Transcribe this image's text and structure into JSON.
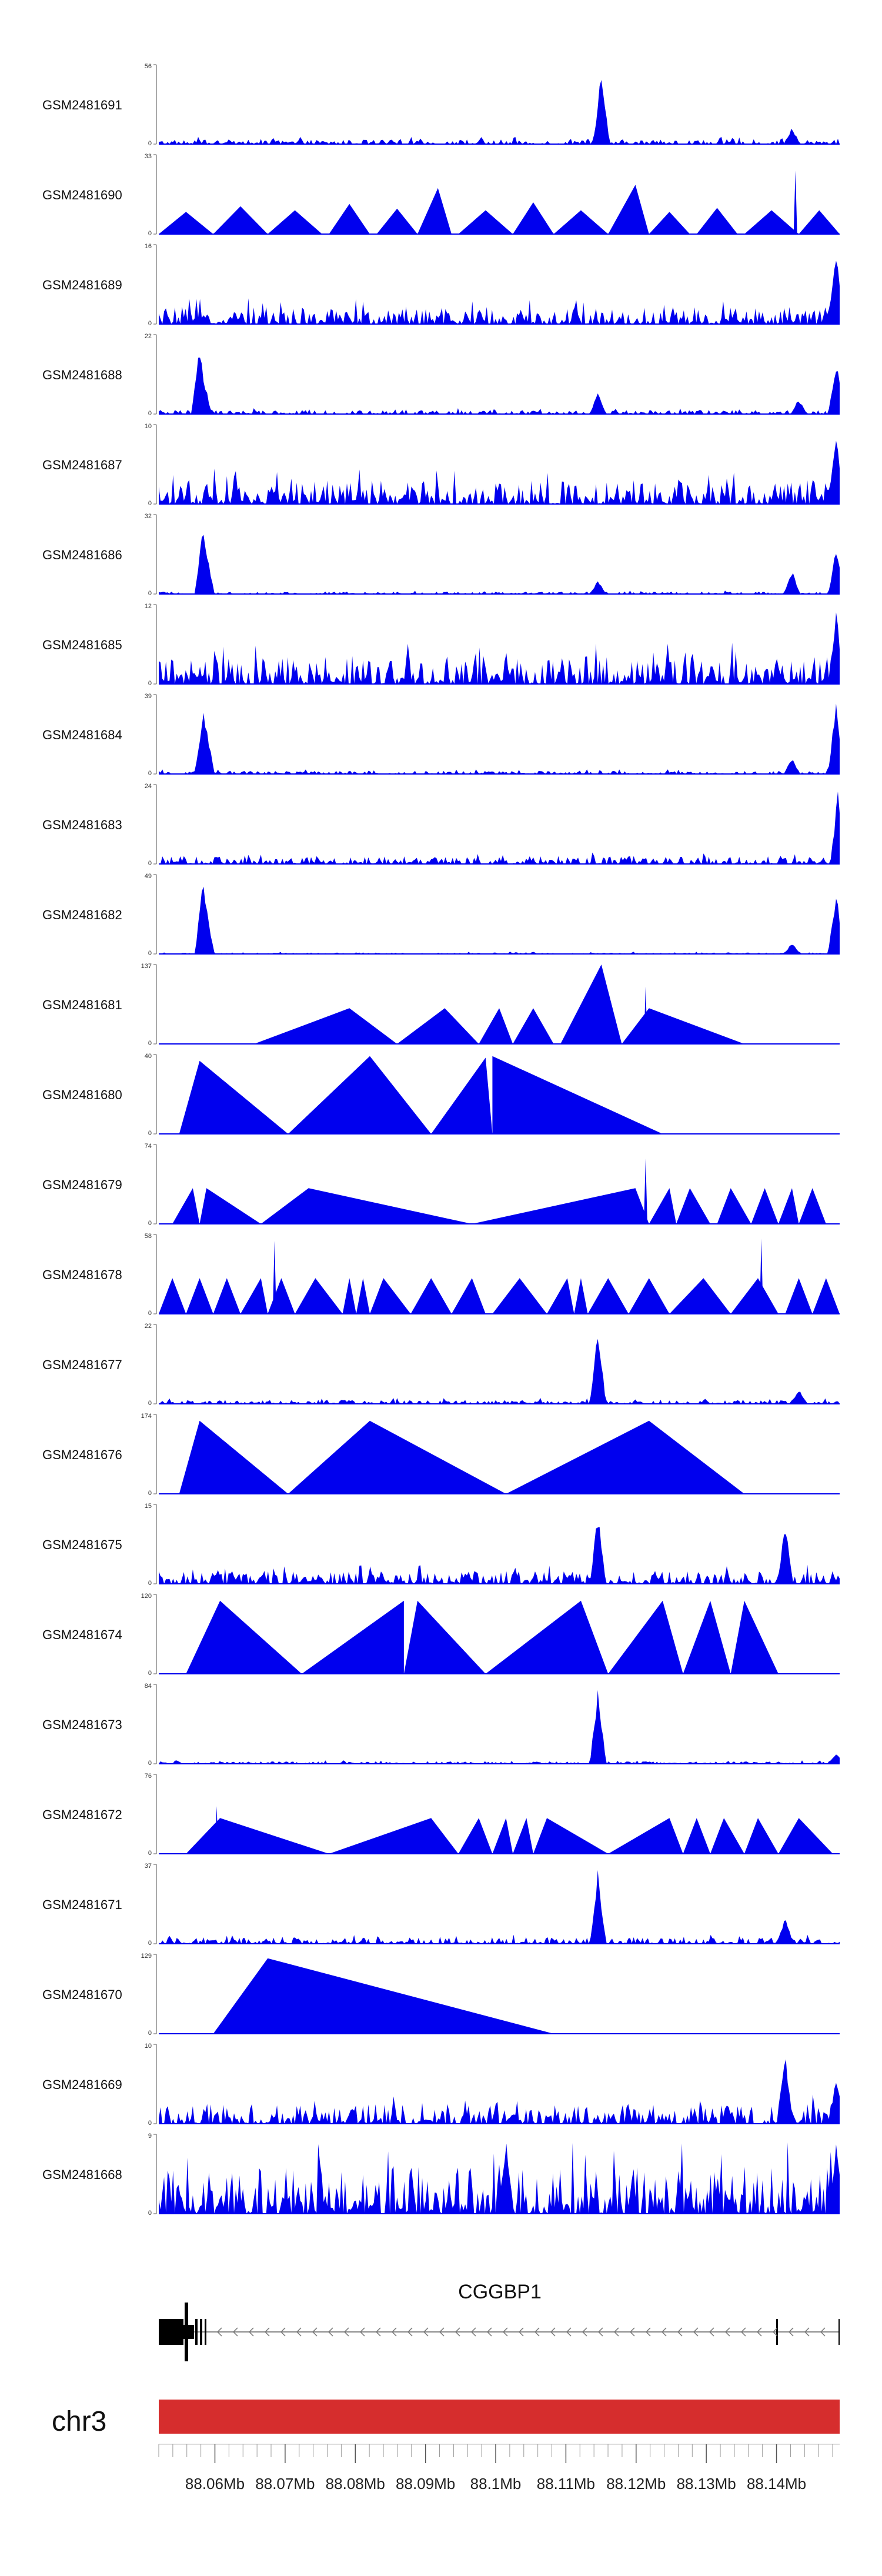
{
  "chart_data": {
    "type": "area",
    "title": "",
    "chromosome": "chr3",
    "gene": {
      "name": "CGGBP1",
      "strand": "-"
    },
    "xlim_mb": [
      88.052,
      88.149
    ],
    "xticks": [
      "88.06Mb",
      "88.07Mb",
      "88.08Mb",
      "88.09Mb",
      "88.1Mb",
      "88.11Mb",
      "88.12Mb",
      "88.13Mb",
      "88.14Mb"
    ],
    "xtick_values_mb": [
      88.06,
      88.07,
      88.08,
      88.09,
      88.1,
      88.11,
      88.12,
      88.13,
      88.14
    ],
    "color": "#0000ee",
    "ideogram_color": "#d62d2d",
    "tracks": [
      {
        "name": "GSM2481691",
        "ymax": 56,
        "style": "noise",
        "base": 0.06,
        "peaks": [
          [
            0.65,
            1.0
          ],
          [
            0.93,
            0.22
          ]
        ]
      },
      {
        "name": "GSM2481690",
        "ymax": 33,
        "style": "tri",
        "base": 0,
        "tri": [
          [
            0.0,
            0.04,
            0.08,
            0.28
          ],
          [
            0.08,
            0.12,
            0.16,
            0.35
          ],
          [
            0.16,
            0.2,
            0.24,
            0.3
          ],
          [
            0.25,
            0.28,
            0.31,
            0.38
          ],
          [
            0.32,
            0.35,
            0.38,
            0.32
          ],
          [
            0.38,
            0.41,
            0.43,
            0.58
          ],
          [
            0.44,
            0.48,
            0.52,
            0.3
          ],
          [
            0.52,
            0.55,
            0.58,
            0.4
          ],
          [
            0.58,
            0.62,
            0.66,
            0.3
          ],
          [
            0.66,
            0.7,
            0.72,
            0.62
          ],
          [
            0.72,
            0.75,
            0.78,
            0.28
          ],
          [
            0.79,
            0.82,
            0.85,
            0.33
          ],
          [
            0.86,
            0.9,
            0.94,
            0.3
          ],
          [
            0.94,
            0.97,
            1.0,
            0.3
          ]
        ],
        "peaks": [
          [
            0.935,
            0.8
          ]
        ]
      },
      {
        "name": "GSM2481689",
        "ymax": 16,
        "style": "noise",
        "base": 0.22,
        "peaks": [
          [
            0.995,
            1.0
          ]
        ]
      },
      {
        "name": "GSM2481688",
        "ymax": 22,
        "style": "noise",
        "base": 0.05,
        "peaks": [
          [
            0.06,
            0.9
          ],
          [
            0.065,
            0.55
          ],
          [
            0.645,
            0.3
          ],
          [
            0.94,
            0.2
          ],
          [
            0.995,
            0.7
          ]
        ]
      },
      {
        "name": "GSM2481687",
        "ymax": 10,
        "style": "noise",
        "base": 0.3,
        "peaks": [
          [
            0.995,
            1.0
          ]
        ]
      },
      {
        "name": "GSM2481686",
        "ymax": 32,
        "style": "noise",
        "base": 0.03,
        "peaks": [
          [
            0.065,
            0.95
          ],
          [
            0.07,
            0.55
          ],
          [
            0.645,
            0.18
          ],
          [
            0.93,
            0.3
          ],
          [
            0.995,
            0.6
          ]
        ]
      },
      {
        "name": "GSM2481685",
        "ymax": 12,
        "style": "noise",
        "base": 0.35,
        "peaks": [
          [
            0.995,
            0.95
          ]
        ]
      },
      {
        "name": "GSM2481684",
        "ymax": 39,
        "style": "noise",
        "base": 0.04,
        "peaks": [
          [
            0.065,
            0.9
          ],
          [
            0.07,
            0.6
          ],
          [
            0.93,
            0.22
          ],
          [
            0.995,
            1.0
          ]
        ]
      },
      {
        "name": "GSM2481683",
        "ymax": 24,
        "style": "noise",
        "base": 0.1,
        "peaks": [
          [
            0.998,
            1.0
          ]
        ]
      },
      {
        "name": "GSM2481682",
        "ymax": 49,
        "style": "noise",
        "base": 0.02,
        "peaks": [
          [
            0.065,
            0.95
          ],
          [
            0.07,
            0.6
          ],
          [
            0.93,
            0.15
          ],
          [
            0.995,
            0.85
          ]
        ]
      },
      {
        "name": "GSM2481681",
        "ymax": 137,
        "style": "tri",
        "base": 0,
        "tri": [
          [
            0.14,
            0.28,
            0.35,
            0.45
          ],
          [
            0.35,
            0.42,
            0.47,
            0.45
          ],
          [
            0.47,
            0.5,
            0.52,
            0.45
          ],
          [
            0.52,
            0.55,
            0.58,
            0.45
          ],
          [
            0.59,
            0.65,
            0.68,
            1.0
          ],
          [
            0.68,
            0.72,
            0.86,
            0.45
          ]
        ],
        "peaks": [
          [
            0.715,
            0.72
          ]
        ]
      },
      {
        "name": "GSM2481680",
        "ymax": 40,
        "style": "tri",
        "base": 0,
        "tri": [
          [
            0.03,
            0.06,
            0.19,
            0.92
          ],
          [
            0.19,
            0.31,
            0.4,
            0.98
          ],
          [
            0.4,
            0.48,
            0.49,
            0.96
          ],
          [
            0.49,
            0.49,
            0.74,
            0.98
          ]
        ],
        "peaks": []
      },
      {
        "name": "GSM2481679",
        "ymax": 74,
        "style": "tri",
        "base": 0,
        "tri": [
          [
            0.02,
            0.05,
            0.06,
            0.45
          ],
          [
            0.06,
            0.07,
            0.15,
            0.45
          ],
          [
            0.15,
            0.22,
            0.46,
            0.45
          ],
          [
            0.46,
            0.7,
            0.72,
            0.45
          ],
          [
            0.72,
            0.75,
            0.76,
            0.45
          ],
          [
            0.76,
            0.78,
            0.81,
            0.45
          ],
          [
            0.82,
            0.84,
            0.87,
            0.45
          ],
          [
            0.87,
            0.89,
            0.91,
            0.45
          ],
          [
            0.91,
            0.93,
            0.94,
            0.45
          ],
          [
            0.94,
            0.96,
            0.98,
            0.45
          ]
        ],
        "peaks": [
          [
            0.715,
            0.82
          ]
        ]
      },
      {
        "name": "GSM2481678",
        "ymax": 58,
        "style": "tri",
        "base": 0,
        "tri": [
          [
            0.0,
            0.02,
            0.04,
            0.45
          ],
          [
            0.04,
            0.06,
            0.08,
            0.45
          ],
          [
            0.08,
            0.1,
            0.12,
            0.45
          ],
          [
            0.12,
            0.15,
            0.16,
            0.45
          ],
          [
            0.16,
            0.18,
            0.2,
            0.45
          ],
          [
            0.2,
            0.23,
            0.27,
            0.45
          ],
          [
            0.27,
            0.28,
            0.29,
            0.45
          ],
          [
            0.29,
            0.3,
            0.31,
            0.45
          ],
          [
            0.31,
            0.33,
            0.37,
            0.45
          ],
          [
            0.37,
            0.4,
            0.43,
            0.45
          ],
          [
            0.43,
            0.46,
            0.48,
            0.45
          ],
          [
            0.49,
            0.53,
            0.57,
            0.45
          ],
          [
            0.57,
            0.6,
            0.61,
            0.45
          ],
          [
            0.61,
            0.62,
            0.63,
            0.45
          ],
          [
            0.63,
            0.66,
            0.69,
            0.45
          ],
          [
            0.69,
            0.72,
            0.75,
            0.45
          ],
          [
            0.75,
            0.8,
            0.84,
            0.45
          ],
          [
            0.84,
            0.88,
            0.91,
            0.45
          ],
          [
            0.92,
            0.94,
            0.96,
            0.45
          ],
          [
            0.96,
            0.98,
            1.0,
            0.45
          ]
        ],
        "peaks": [
          [
            0.17,
            0.92
          ],
          [
            0.885,
            0.95
          ]
        ]
      },
      {
        "name": "GSM2481677",
        "ymax": 22,
        "style": "noise",
        "base": 0.05,
        "peaks": [
          [
            0.645,
            1.0
          ],
          [
            0.94,
            0.2
          ]
        ]
      },
      {
        "name": "GSM2481676",
        "ymax": 174,
        "style": "tri",
        "base": 0,
        "tri": [
          [
            0.03,
            0.06,
            0.19,
            0.92
          ],
          [
            0.19,
            0.31,
            0.51,
            0.92
          ],
          [
            0.51,
            0.72,
            0.86,
            0.92
          ]
        ],
        "peaks": []
      },
      {
        "name": "GSM2481675",
        "ymax": 15,
        "style": "noise",
        "base": 0.16,
        "peaks": [
          [
            0.645,
            0.95
          ],
          [
            0.92,
            0.8
          ]
        ]
      },
      {
        "name": "GSM2481674",
        "ymax": 120,
        "style": "tri",
        "base": 0,
        "tri": [
          [
            0.04,
            0.09,
            0.21,
            0.92
          ],
          [
            0.21,
            0.36,
            0.36,
            0.92
          ],
          [
            0.36,
            0.38,
            0.48,
            0.92
          ],
          [
            0.48,
            0.62,
            0.66,
            0.92
          ],
          [
            0.66,
            0.74,
            0.77,
            0.92
          ],
          [
            0.77,
            0.81,
            0.84,
            0.92
          ],
          [
            0.84,
            0.86,
            0.91,
            0.92
          ]
        ],
        "peaks": []
      },
      {
        "name": "GSM2481673",
        "ymax": 84,
        "style": "noise",
        "base": 0.03,
        "peaks": [
          [
            0.645,
            1.0
          ],
          [
            0.995,
            0.15
          ]
        ]
      },
      {
        "name": "GSM2481672",
        "ymax": 76,
        "style": "tri",
        "base": 0,
        "tri": [
          [
            0.04,
            0.09,
            0.25,
            0.45
          ],
          [
            0.25,
            0.4,
            0.44,
            0.45
          ],
          [
            0.44,
            0.47,
            0.49,
            0.45
          ],
          [
            0.49,
            0.51,
            0.52,
            0.45
          ],
          [
            0.52,
            0.54,
            0.55,
            0.45
          ],
          [
            0.55,
            0.57,
            0.66,
            0.45
          ],
          [
            0.66,
            0.75,
            0.77,
            0.45
          ],
          [
            0.77,
            0.79,
            0.81,
            0.45
          ],
          [
            0.81,
            0.83,
            0.86,
            0.45
          ],
          [
            0.86,
            0.88,
            0.91,
            0.45
          ],
          [
            0.91,
            0.94,
            0.99,
            0.45
          ]
        ],
        "peaks": [
          [
            0.085,
            0.6
          ]
        ]
      },
      {
        "name": "GSM2481671",
        "ymax": 37,
        "style": "noise",
        "base": 0.08,
        "peaks": [
          [
            0.645,
            1.0
          ],
          [
            0.92,
            0.35
          ]
        ]
      },
      {
        "name": "GSM2481670",
        "ymax": 129,
        "style": "tri",
        "base": 0,
        "tri": [
          [
            0.08,
            0.16,
            0.58,
            0.95
          ]
        ],
        "peaks": []
      },
      {
        "name": "GSM2481669",
        "ymax": 10,
        "style": "noise",
        "base": 0.25,
        "peaks": [
          [
            0.92,
            0.95
          ],
          [
            0.995,
            0.6
          ]
        ]
      },
      {
        "name": "GSM2481668",
        "ymax": 9,
        "style": "noise",
        "base": 0.6,
        "peaks": [
          [
            0.51,
            0.95
          ],
          [
            0.995,
            0.9
          ]
        ]
      }
    ]
  }
}
